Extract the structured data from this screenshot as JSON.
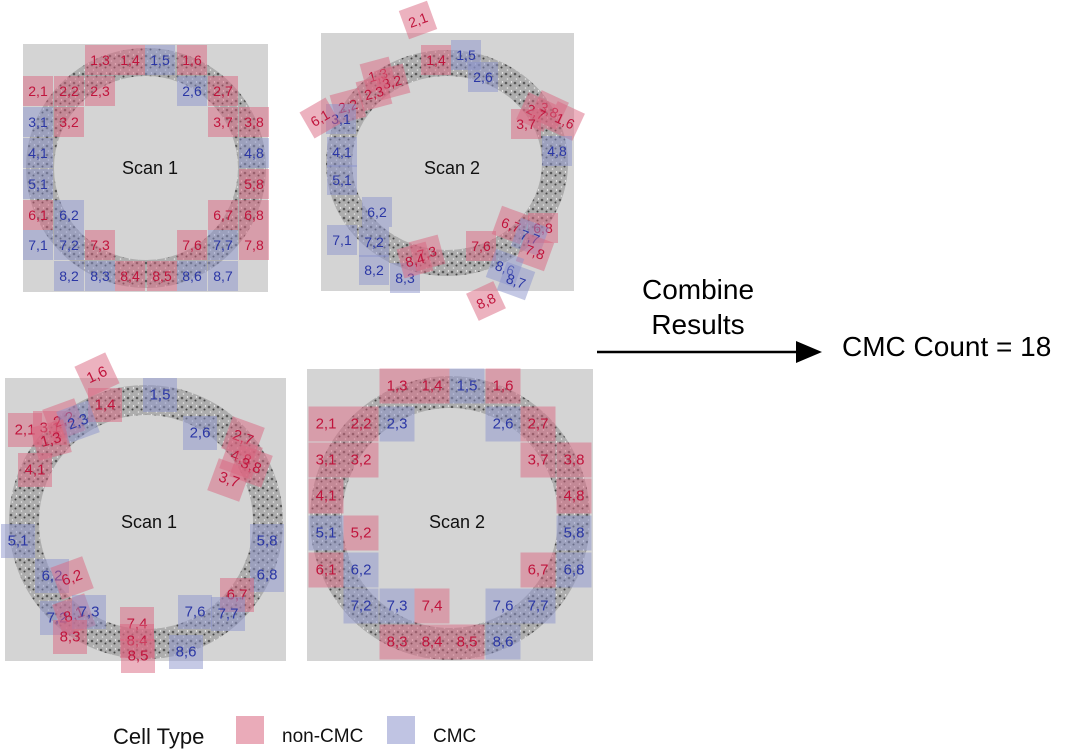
{
  "colors": {
    "non_cmc_fill": "#d9667f",
    "non_cmc_text": "#c0143c",
    "cmc_fill": "#8c94cc",
    "cmc_text": "#2b37a5",
    "panel_bg": "#d4d4d4",
    "ring": "#9a9a9a",
    "arrow": "#000000"
  },
  "panels": [
    {
      "scan_label": "Scan 1",
      "cells": [
        {
          "label": "1,3",
          "type": "non-CMC"
        },
        {
          "label": "1,4",
          "type": "non-CMC"
        },
        {
          "label": "1,5",
          "type": "CMC"
        },
        {
          "label": "1,6",
          "type": "non-CMC"
        },
        {
          "label": "2,1",
          "type": "non-CMC"
        },
        {
          "label": "2,2",
          "type": "non-CMC"
        },
        {
          "label": "2,3",
          "type": "non-CMC"
        },
        {
          "label": "2,6",
          "type": "CMC"
        },
        {
          "label": "2,7",
          "type": "non-CMC"
        },
        {
          "label": "3,1",
          "type": "CMC"
        },
        {
          "label": "3,2",
          "type": "non-CMC"
        },
        {
          "label": "3,7",
          "type": "non-CMC"
        },
        {
          "label": "3,8",
          "type": "non-CMC"
        },
        {
          "label": "4,1",
          "type": "CMC"
        },
        {
          "label": "4,8",
          "type": "CMC"
        },
        {
          "label": "5,1",
          "type": "CMC"
        },
        {
          "label": "5,8",
          "type": "non-CMC"
        },
        {
          "label": "6,1",
          "type": "non-CMC"
        },
        {
          "label": "6,2",
          "type": "CMC"
        },
        {
          "label": "6,7",
          "type": "non-CMC"
        },
        {
          "label": "6,8",
          "type": "non-CMC"
        },
        {
          "label": "7,1",
          "type": "CMC"
        },
        {
          "label": "7,2",
          "type": "CMC"
        },
        {
          "label": "7,3",
          "type": "non-CMC"
        },
        {
          "label": "7,6",
          "type": "non-CMC"
        },
        {
          "label": "7,7",
          "type": "CMC"
        },
        {
          "label": "7,8",
          "type": "non-CMC"
        },
        {
          "label": "8,2",
          "type": "CMC"
        },
        {
          "label": "8,3",
          "type": "CMC"
        },
        {
          "label": "8,4",
          "type": "non-CMC"
        },
        {
          "label": "8,5",
          "type": "non-CMC"
        },
        {
          "label": "8,6",
          "type": "CMC"
        },
        {
          "label": "8,7",
          "type": "CMC"
        }
      ]
    },
    {
      "scan_label": "Scan 2",
      "cells": [
        {
          "label": "2,1",
          "type": "non-CMC"
        },
        {
          "label": "1,4",
          "type": "non-CMC"
        },
        {
          "label": "1,5",
          "type": "CMC"
        },
        {
          "label": "2,6",
          "type": "CMC"
        },
        {
          "label": "1,3",
          "type": "non-CMC"
        },
        {
          "label": "3,2",
          "type": "non-CMC"
        },
        {
          "label": "2,3",
          "type": "non-CMC"
        },
        {
          "label": "2,2",
          "type": "non-CMC"
        },
        {
          "label": "3,1",
          "type": "CMC"
        },
        {
          "label": "6,1",
          "type": "non-CMC"
        },
        {
          "label": "3,8",
          "type": "non-CMC"
        },
        {
          "label": "2,7",
          "type": "non-CMC"
        },
        {
          "label": "3,7",
          "type": "non-CMC"
        },
        {
          "label": "1,6",
          "type": "non-CMC"
        },
        {
          "label": "4,8",
          "type": "CMC"
        },
        {
          "label": "4,1",
          "type": "CMC"
        },
        {
          "label": "5,1",
          "type": "CMC"
        },
        {
          "label": "6,2",
          "type": "CMC"
        },
        {
          "label": "7,1",
          "type": "CMC"
        },
        {
          "label": "7,2",
          "type": "CMC"
        },
        {
          "label": "8,2",
          "type": "CMC"
        },
        {
          "label": "8,3",
          "type": "CMC"
        },
        {
          "label": "7,3",
          "type": "non-CMC"
        },
        {
          "label": "8,4",
          "type": "non-CMC"
        },
        {
          "label": "7,6",
          "type": "non-CMC"
        },
        {
          "label": "6,7",
          "type": "non-CMC"
        },
        {
          "label": "6,8",
          "type": "non-CMC"
        },
        {
          "label": "7,7",
          "type": "CMC"
        },
        {
          "label": "7,8",
          "type": "non-CMC"
        },
        {
          "label": "8,6",
          "type": "CMC"
        },
        {
          "label": "8,7",
          "type": "CMC"
        },
        {
          "label": "8,8",
          "type": "non-CMC"
        }
      ]
    },
    {
      "scan_label": "Scan 1",
      "cells": [
        {
          "label": "1,6",
          "type": "non-CMC"
        },
        {
          "label": "1,4",
          "type": "non-CMC"
        },
        {
          "label": "1,5",
          "type": "CMC"
        },
        {
          "label": "2,1",
          "type": "non-CMC"
        },
        {
          "label": "3,1",
          "type": "non-CMC"
        },
        {
          "label": "2,2",
          "type": "non-CMC"
        },
        {
          "label": "2,3",
          "type": "CMC"
        },
        {
          "label": "1,3",
          "type": "non-CMC"
        },
        {
          "label": "4,1",
          "type": "non-CMC"
        },
        {
          "label": "2,6",
          "type": "CMC"
        },
        {
          "label": "2,7",
          "type": "non-CMC"
        },
        {
          "label": "4,8",
          "type": "non-CMC"
        },
        {
          "label": "3,8",
          "type": "non-CMC"
        },
        {
          "label": "3,7",
          "type": "non-CMC"
        },
        {
          "label": "5,1",
          "type": "CMC"
        },
        {
          "label": "5,8",
          "type": "CMC"
        },
        {
          "label": "6,8",
          "type": "CMC"
        },
        {
          "label": "6,2",
          "type": "CMC"
        },
        {
          "label": "6,2",
          "type": "non-CMC"
        },
        {
          "label": "6,7",
          "type": "non-CMC"
        },
        {
          "label": "7,2",
          "type": "CMC"
        },
        {
          "label": "8,1",
          "type": "non-CMC"
        },
        {
          "label": "7,3",
          "type": "CMC"
        },
        {
          "label": "8,3",
          "type": "non-CMC"
        },
        {
          "label": "7,4",
          "type": "non-CMC"
        },
        {
          "label": "8,4",
          "type": "non-CMC"
        },
        {
          "label": "8,5",
          "type": "non-CMC"
        },
        {
          "label": "7,6",
          "type": "CMC"
        },
        {
          "label": "7,7",
          "type": "CMC"
        },
        {
          "label": "8,6",
          "type": "CMC"
        }
      ]
    },
    {
      "scan_label": "Scan 2",
      "cells": [
        {
          "label": "1,3",
          "type": "non-CMC"
        },
        {
          "label": "1,4",
          "type": "non-CMC"
        },
        {
          "label": "1,5",
          "type": "CMC"
        },
        {
          "label": "1,6",
          "type": "non-CMC"
        },
        {
          "label": "2,1",
          "type": "non-CMC"
        },
        {
          "label": "2,2",
          "type": "non-CMC"
        },
        {
          "label": "2,3",
          "type": "CMC"
        },
        {
          "label": "2,6",
          "type": "CMC"
        },
        {
          "label": "2,7",
          "type": "non-CMC"
        },
        {
          "label": "3,1",
          "type": "non-CMC"
        },
        {
          "label": "3,2",
          "type": "non-CMC"
        },
        {
          "label": "3,7",
          "type": "non-CMC"
        },
        {
          "label": "3,8",
          "type": "non-CMC"
        },
        {
          "label": "4,1",
          "type": "non-CMC"
        },
        {
          "label": "4,8",
          "type": "non-CMC"
        },
        {
          "label": "5,1",
          "type": "CMC"
        },
        {
          "label": "5,2",
          "type": "non-CMC"
        },
        {
          "label": "5,8",
          "type": "CMC"
        },
        {
          "label": "6,1",
          "type": "non-CMC"
        },
        {
          "label": "6,2",
          "type": "CMC"
        },
        {
          "label": "6,7",
          "type": "non-CMC"
        },
        {
          "label": "6,8",
          "type": "CMC"
        },
        {
          "label": "7,2",
          "type": "CMC"
        },
        {
          "label": "7,3",
          "type": "CMC"
        },
        {
          "label": "7,4",
          "type": "non-CMC"
        },
        {
          "label": "7,6",
          "type": "CMC"
        },
        {
          "label": "7,7",
          "type": "CMC"
        },
        {
          "label": "8,3",
          "type": "non-CMC"
        },
        {
          "label": "8,4",
          "type": "non-CMC"
        },
        {
          "label": "8,5",
          "type": "non-CMC"
        },
        {
          "label": "8,6",
          "type": "CMC"
        }
      ]
    }
  ],
  "arrow": {
    "label_line1": "Combine",
    "label_line2": "Results"
  },
  "result": {
    "text": "CMC Count = 18"
  },
  "legend": {
    "title": "Cell Type",
    "items": [
      {
        "label": "non-CMC",
        "type": "non-CMC"
      },
      {
        "label": "CMC",
        "type": "CMC"
      }
    ]
  }
}
